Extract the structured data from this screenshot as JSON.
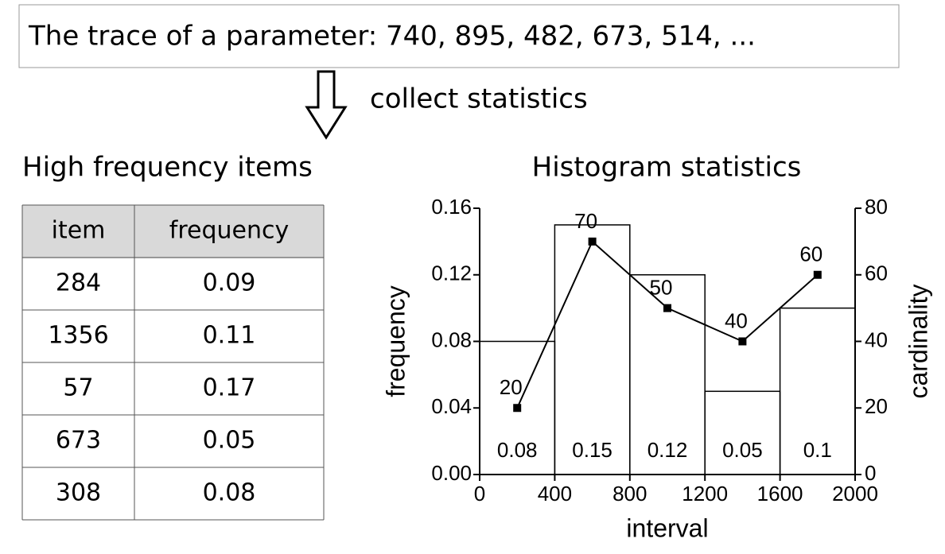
{
  "trace": "The trace of a parameter: 740, 895, 482, 673, 514, ...",
  "arrow_label": "collect statistics",
  "table": {
    "title": "High frequency items",
    "header": [
      "item",
      "frequency"
    ],
    "rows": [
      [
        284,
        0.09
      ],
      [
        1356,
        0.11
      ],
      [
        57,
        0.17
      ],
      [
        673,
        0.05
      ],
      [
        308,
        0.08
      ]
    ]
  },
  "chart_data": {
    "type": "histogram",
    "title": "Histogram statistics",
    "xlabel": "interval",
    "ylabel": "frequency",
    "y2label": "cardinality",
    "bins": [
      0,
      400,
      800,
      1200,
      1600,
      2000
    ],
    "values": [
      0.08,
      0.15,
      0.12,
      0.05,
      0.1
    ],
    "series": [
      {
        "x": [
          200,
          600,
          1000,
          1400,
          1800
        ],
        "values": [
          20,
          70,
          50,
          40,
          60
        ],
        "axis": "y2",
        "color": "#000000"
      }
    ],
    "xlim": [
      0,
      2000
    ],
    "xticks": [
      0,
      400,
      800,
      1200,
      1600,
      2000
    ],
    "ylim": [
      0,
      0.16
    ],
    "yticks": [
      {
        "value": 0,
        "label": "0.00"
      },
      0.04,
      0.08,
      0.12,
      0.16
    ],
    "y2lim": [
      0,
      80
    ],
    "y2ticks": [
      0,
      20,
      40,
      60,
      80
    ]
  }
}
